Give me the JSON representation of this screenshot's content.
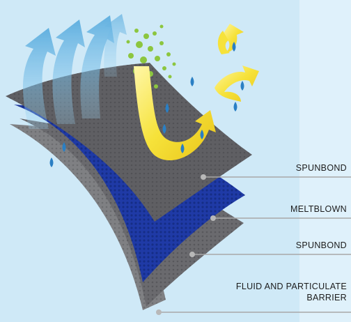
{
  "layers": [
    {
      "label": "SPUNBOND"
    },
    {
      "label": "MELTBLOWN"
    },
    {
      "label": "SPUNBOND"
    },
    {
      "label_line1": "FLUID AND PARTICULATE",
      "label_line2": "BARRIER"
    }
  ],
  "colors": {
    "background": "#cfe9f7",
    "spunbond": "#5f5f63",
    "meltblown": "#1f3aa6",
    "air_arrows": "#69b8e8",
    "fluid_arrows": "#f5df2e",
    "particles": "#8cc63f",
    "droplets": "#2a7fc4",
    "leader_line": "#a8a8a8"
  }
}
